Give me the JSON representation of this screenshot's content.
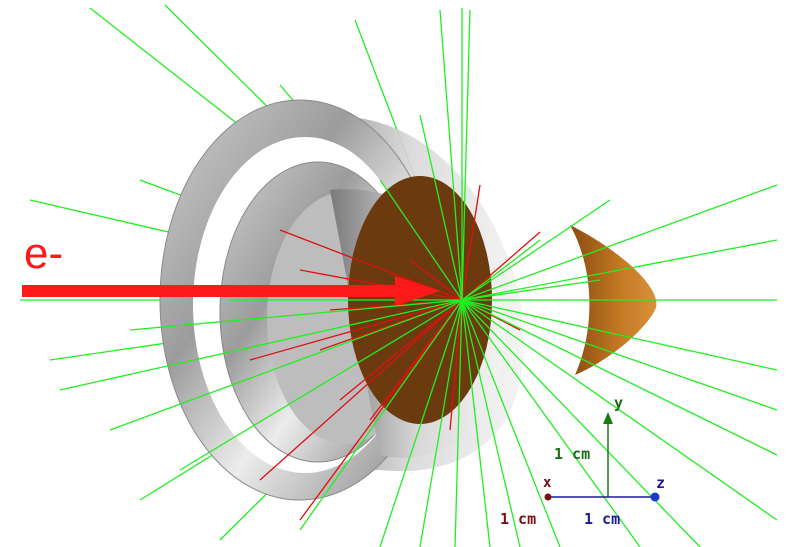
{
  "beam": {
    "particle_label": "e-"
  },
  "axes": {
    "x_label": "x",
    "y_label": "y",
    "z_label": "z",
    "y_scale_label": "1 cm",
    "x_scale_label": "1 cm",
    "z_scale_label": "1 cm"
  },
  "colors": {
    "beam": "#ff1a1a",
    "gamma_tracks": "#22ee22",
    "charged_tracks": "#dd1111",
    "detector_ring": "#a8a8a8",
    "target_disk": "#6b3a0e",
    "cone": "#c8771e",
    "y_axis": "#1a7a1a",
    "x_axis": "#7a1010",
    "z_axis": "#1a1a99"
  }
}
